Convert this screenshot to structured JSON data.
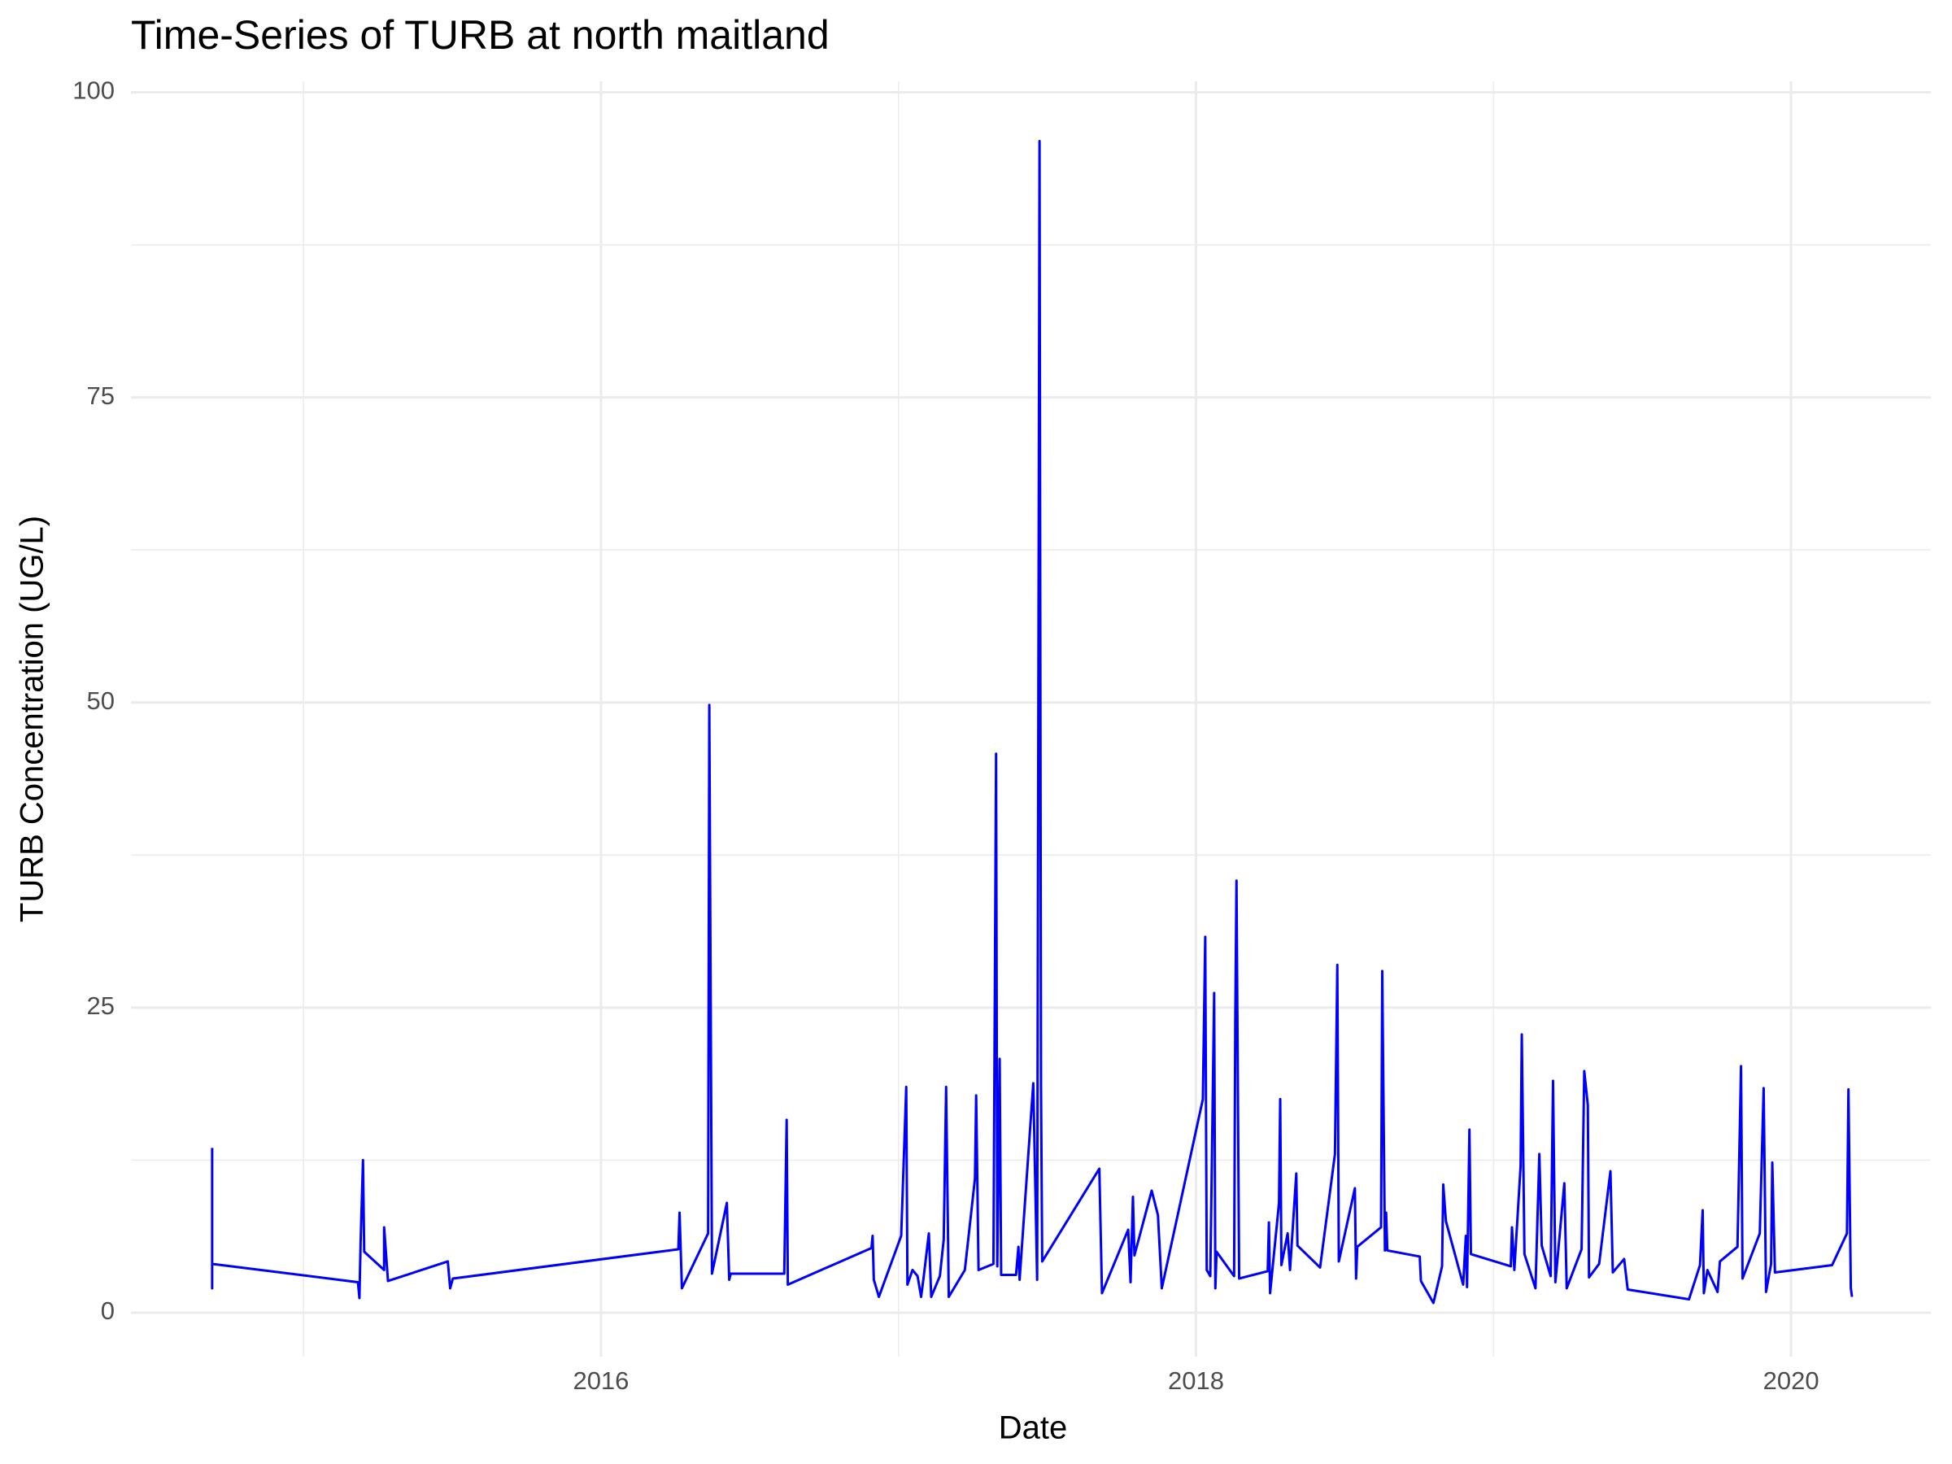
{
  "chart_data": {
    "type": "line",
    "title": "Time-Series of TURB at north maitland",
    "x_label": "Date",
    "y_label": "TURB Concentration (UG/L)",
    "xlim": [
      2014.42,
      2020.47
    ],
    "xticks": [
      2016,
      2018,
      2020
    ],
    "x_minor_ticks": [
      2015,
      2017,
      2019
    ],
    "ylim": [
      -3.6,
      100.9
    ],
    "yticks": [
      0,
      25,
      50,
      75,
      100
    ],
    "y_minor_ticks": [
      12.5,
      37.5,
      62.5,
      87.5
    ],
    "grid": true,
    "x": [
      2014.693,
      2014.693,
      2014.693,
      2015.183,
      2015.188,
      2015.192,
      2015.2,
      2015.204,
      2015.271,
      2015.271,
      2015.284,
      2015.485,
      2015.493,
      2015.502,
      2016.26,
      2016.264,
      2016.272,
      2016.36,
      2016.364,
      2016.373,
      2016.423,
      2016.431,
      2016.436,
      2016.616,
      2016.624,
      2016.628,
      2016.909,
      2016.913,
      2016.917,
      2016.934,
      2017.009,
      2017.026,
      2017.03,
      2017.047,
      2017.064,
      2017.076,
      2017.085,
      2017.102,
      2017.11,
      2017.139,
      2017.152,
      2017.16,
      2017.169,
      2017.223,
      2017.257,
      2017.261,
      2017.269,
      2017.319,
      2017.328,
      2017.332,
      2017.34,
      2017.345,
      2017.395,
      2017.403,
      2017.407,
      2017.453,
      2017.466,
      2017.474,
      2017.479,
      2017.483,
      2017.675,
      2017.684,
      2017.772,
      2017.78,
      2017.788,
      2017.793,
      2017.851,
      2017.872,
      2017.885,
      2018.023,
      2018.031,
      2018.036,
      2018.048,
      2018.061,
      2018.065,
      2018.069,
      2018.128,
      2018.132,
      2018.136,
      2018.145,
      2018.241,
      2018.245,
      2018.249,
      2018.279,
      2018.283,
      2018.287,
      2018.308,
      2018.316,
      2018.337,
      2018.341,
      2018.417,
      2018.467,
      2018.475,
      2018.48,
      2018.534,
      2018.538,
      2018.542,
      2018.622,
      2018.626,
      2018.635,
      2018.639,
      2018.643,
      2018.752,
      2018.756,
      2018.798,
      2018.827,
      2018.831,
      2018.84,
      2018.898,
      2018.907,
      2018.911,
      2018.919,
      2018.924,
      2019.058,
      2019.062,
      2019.07,
      2019.091,
      2019.095,
      2019.104,
      2019.141,
      2019.154,
      2019.162,
      2019.192,
      2019.2,
      2019.208,
      2019.238,
      2019.246,
      2019.296,
      2019.305,
      2019.317,
      2019.321,
      2019.355,
      2019.393,
      2019.401,
      2019.439,
      2019.451,
      2019.657,
      2019.694,
      2019.703,
      2019.707,
      2019.719,
      2019.753,
      2019.761,
      2019.82,
      2019.832,
      2019.837,
      2019.895,
      2019.908,
      2019.916,
      2019.933,
      2019.937,
      2019.946,
      2020.138,
      2020.188,
      2020.193,
      2020.201,
      2020.205
    ],
    "series": [
      {
        "color": "#0000ff",
        "values": [
          13.5,
          2.0,
          4.0,
          2.5,
          1.2,
          5.8,
          12.5,
          5.0,
          3.5,
          7.0,
          2.6,
          4.2,
          2.0,
          2.8,
          5.2,
          8.2,
          2.0,
          6.5,
          49.8,
          3.2,
          9.0,
          2.7,
          3.2,
          3.2,
          15.8,
          2.3,
          5.3,
          6.3,
          2.7,
          1.3,
          6.3,
          18.5,
          2.3,
          3.5,
          3.0,
          1.3,
          3.0,
          6.5,
          1.3,
          3.0,
          6.0,
          18.5,
          1.3,
          3.5,
          11.0,
          17.8,
          3.5,
          4.0,
          45.8,
          3.8,
          20.8,
          3.1,
          3.1,
          5.4,
          2.7,
          18.8,
          2.7,
          96.0,
          18.5,
          4.2,
          11.8,
          1.6,
          6.8,
          2.5,
          9.5,
          4.7,
          10.0,
          8.0,
          2.0,
          17.5,
          30.8,
          3.5,
          3.0,
          26.2,
          2.0,
          5.0,
          3.0,
          24.0,
          35.4,
          2.8,
          3.4,
          7.4,
          1.6,
          9.0,
          17.5,
          3.9,
          6.5,
          3.5,
          11.4,
          5.5,
          3.7,
          13.0,
          28.5,
          4.2,
          10.2,
          2.8,
          5.4,
          7.0,
          28.0,
          5.1,
          8.2,
          5.1,
          4.6,
          2.6,
          0.8,
          3.8,
          10.5,
          7.5,
          2.3,
          6.3,
          2.1,
          15.0,
          4.8,
          3.8,
          7.0,
          3.5,
          12.0,
          22.8,
          4.8,
          2.0,
          13.0,
          5.5,
          3.0,
          19.0,
          2.5,
          10.6,
          2.0,
          5.2,
          19.8,
          17.0,
          2.9,
          4.0,
          11.6,
          3.3,
          4.4,
          1.9,
          1.1,
          3.9,
          8.4,
          1.6,
          3.5,
          1.7,
          4.2,
          5.4,
          20.2,
          2.8,
          6.5,
          18.4,
          1.7,
          4.0,
          12.3,
          3.3,
          3.9,
          6.5,
          18.3,
          2.0,
          1.3
        ]
      }
    ]
  }
}
